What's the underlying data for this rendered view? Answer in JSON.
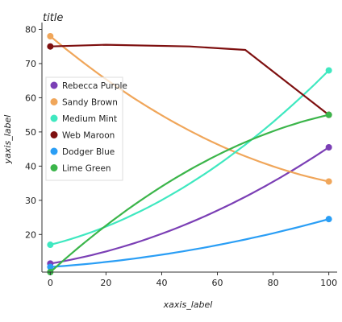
{
  "chart_data": {
    "type": "line",
    "title": "title",
    "xlabel": "xaxis_label",
    "ylabel": "yaxis_label",
    "xlim": [
      -3,
      103
    ],
    "ylim": [
      9,
      82
    ],
    "xticks": [
      "0",
      "20",
      "40",
      "60",
      "80",
      "100"
    ],
    "yticks": [
      "20",
      "30",
      "40",
      "50",
      "60",
      "70",
      "80"
    ],
    "xtick_values": [
      0,
      20,
      40,
      60,
      80,
      100
    ],
    "ytick_values": [
      20,
      30,
      40,
      50,
      60,
      70,
      80
    ],
    "grid": false,
    "legend_position": "left",
    "series": [
      {
        "name": "Rebecca Purple",
        "color": "#7b3fb5",
        "x": [
          0,
          100
        ],
        "y": [
          11.5,
          45.5
        ],
        "curve": "convex"
      },
      {
        "name": "Sandy Brown",
        "color": "#f0a65a",
        "x": [
          0,
          100
        ],
        "y": [
          78,
          35.5
        ],
        "curve": "concave"
      },
      {
        "name": "Medium Mint",
        "color": "#3fe8c0",
        "x": [
          0,
          100
        ],
        "y": [
          17,
          68
        ],
        "curve": "convex"
      },
      {
        "name": "Web Maroon",
        "color": "#7e1010",
        "x": [
          0,
          20,
          50,
          70,
          100
        ],
        "y": [
          75,
          75.5,
          75,
          74,
          55
        ],
        "curve": "linear"
      },
      {
        "name": "Dodger Blue",
        "color": "#2a9ef5",
        "x": [
          0,
          100
        ],
        "y": [
          10.5,
          24.5
        ],
        "curve": "convex"
      },
      {
        "name": "Lime Green",
        "color": "#3bb54a",
        "x": [
          0,
          100
        ],
        "y": [
          9,
          55
        ],
        "curve": "concave"
      }
    ]
  }
}
